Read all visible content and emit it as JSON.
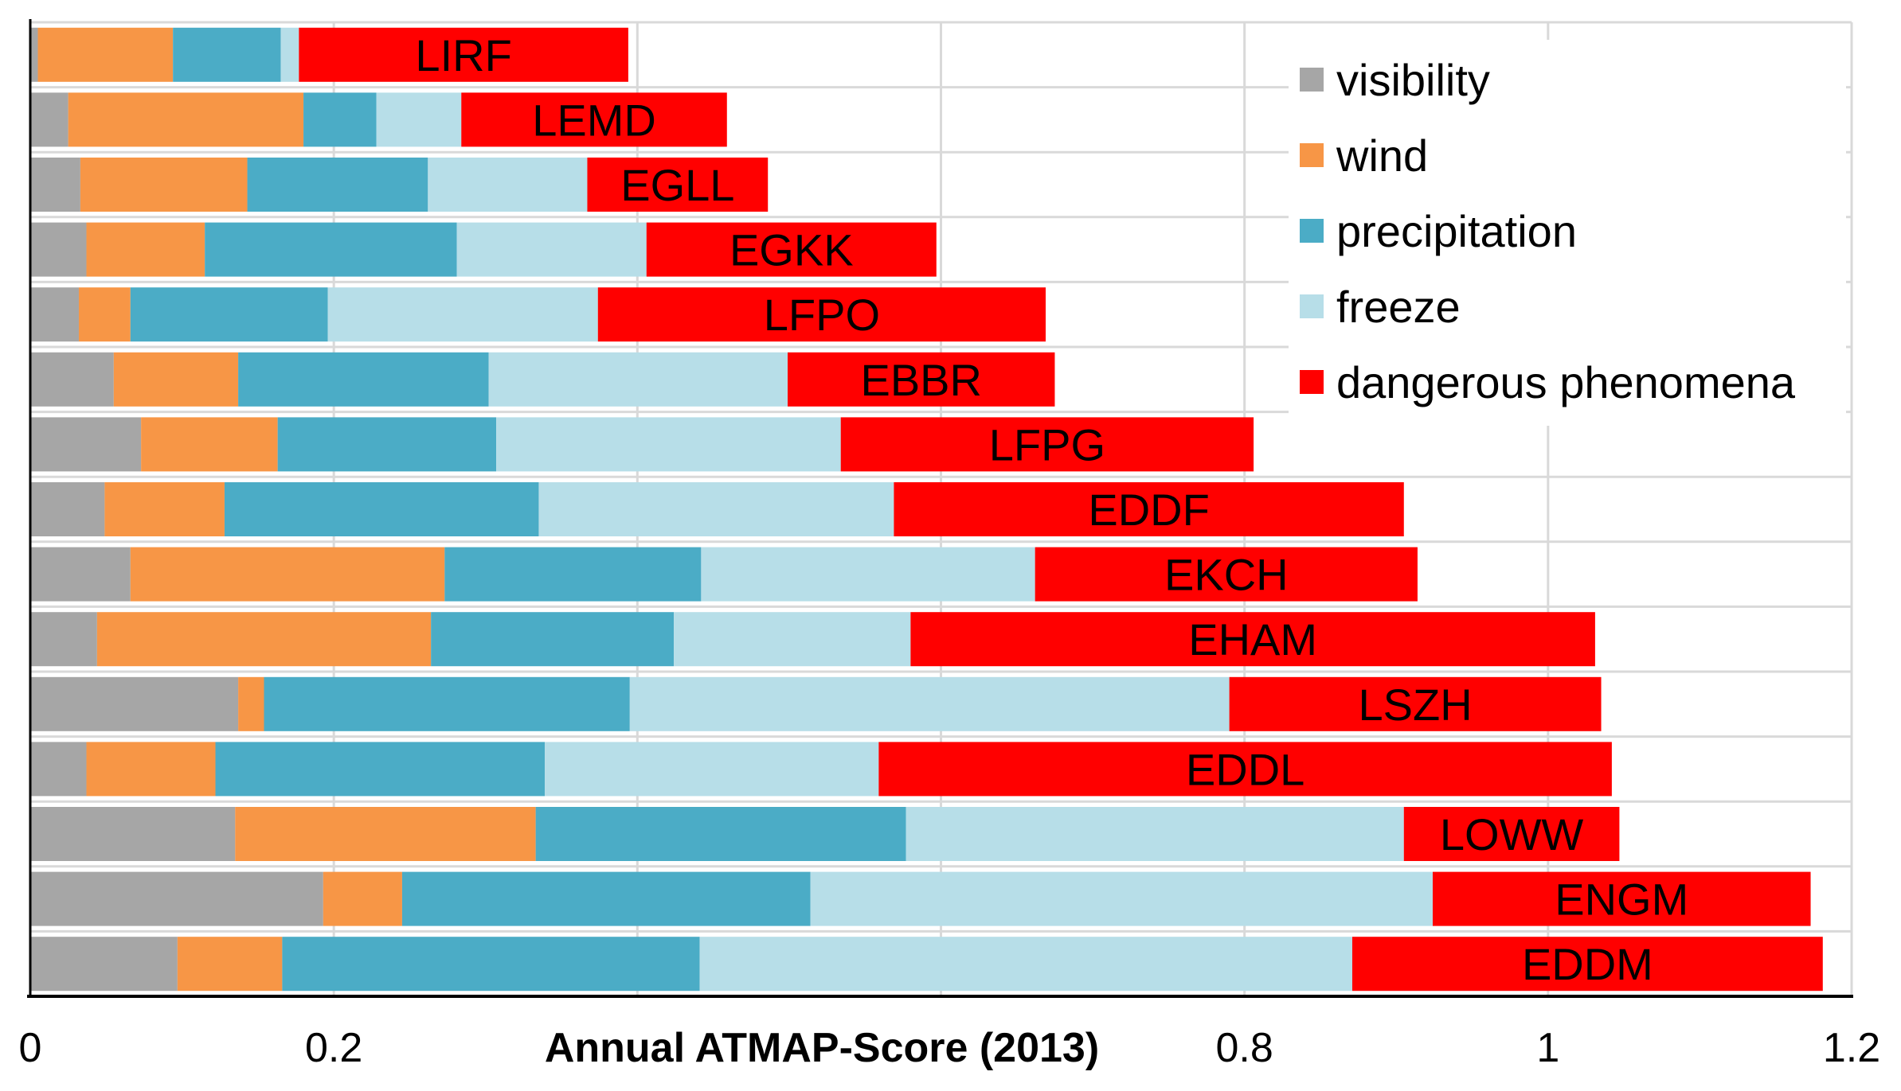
{
  "chart_data": {
    "type": "bar",
    "orientation": "horizontal",
    "stacked": true,
    "title": "",
    "xlabel": "Annual ATMAP-Score (2013)",
    "ylabel": "",
    "xlim": [
      0,
      1.2
    ],
    "x_ticks": [
      {
        "value": 0,
        "label": "0"
      },
      {
        "value": 0.2,
        "label": "0.2"
      },
      {
        "value": 0.8,
        "label": "0.8"
      },
      {
        "value": 1,
        "label": "1"
      },
      {
        "value": 1.2,
        "label": "1.2"
      }
    ],
    "grid": true,
    "legend_position": "top-right",
    "categories": [
      "LIRF",
      "LEMD",
      "EGLL",
      "EGKK",
      "LFPO",
      "EBBR",
      "LFPG",
      "EDDF",
      "EKCH",
      "EHAM",
      "LSZH",
      "EDDL",
      "LOWW",
      "ENGM",
      "EDDM"
    ],
    "series": [
      {
        "name": "visibility",
        "color": "#a6a6a6",
        "values": [
          0.005,
          0.025,
          0.033,
          0.037,
          0.032,
          0.055,
          0.073,
          0.049,
          0.066,
          0.044,
          0.137,
          0.037,
          0.135,
          0.193,
          0.097
        ]
      },
      {
        "name": "wind",
        "color": "#f79646",
        "values": [
          0.089,
          0.155,
          0.11,
          0.078,
          0.034,
          0.082,
          0.09,
          0.079,
          0.207,
          0.22,
          0.017,
          0.085,
          0.198,
          0.052,
          0.069
        ]
      },
      {
        "name": "precipitation",
        "color": "#4bacc6",
        "values": [
          0.071,
          0.048,
          0.119,
          0.166,
          0.13,
          0.165,
          0.144,
          0.207,
          0.169,
          0.16,
          0.241,
          0.217,
          0.244,
          0.269,
          0.275
        ]
      },
      {
        "name": "freeze",
        "color": "#b7dee8",
        "values": [
          0.012,
          0.056,
          0.105,
          0.125,
          0.178,
          0.197,
          0.227,
          0.234,
          0.22,
          0.156,
          0.395,
          0.22,
          0.328,
          0.41,
          0.43
        ]
      },
      {
        "name": "dangerous phenomena",
        "color": "#ff0000",
        "values": [
          0.217,
          0.175,
          0.119,
          0.191,
          0.295,
          0.176,
          0.272,
          0.336,
          0.252,
          0.451,
          0.245,
          0.483,
          0.142,
          0.249,
          0.31
        ]
      }
    ]
  }
}
